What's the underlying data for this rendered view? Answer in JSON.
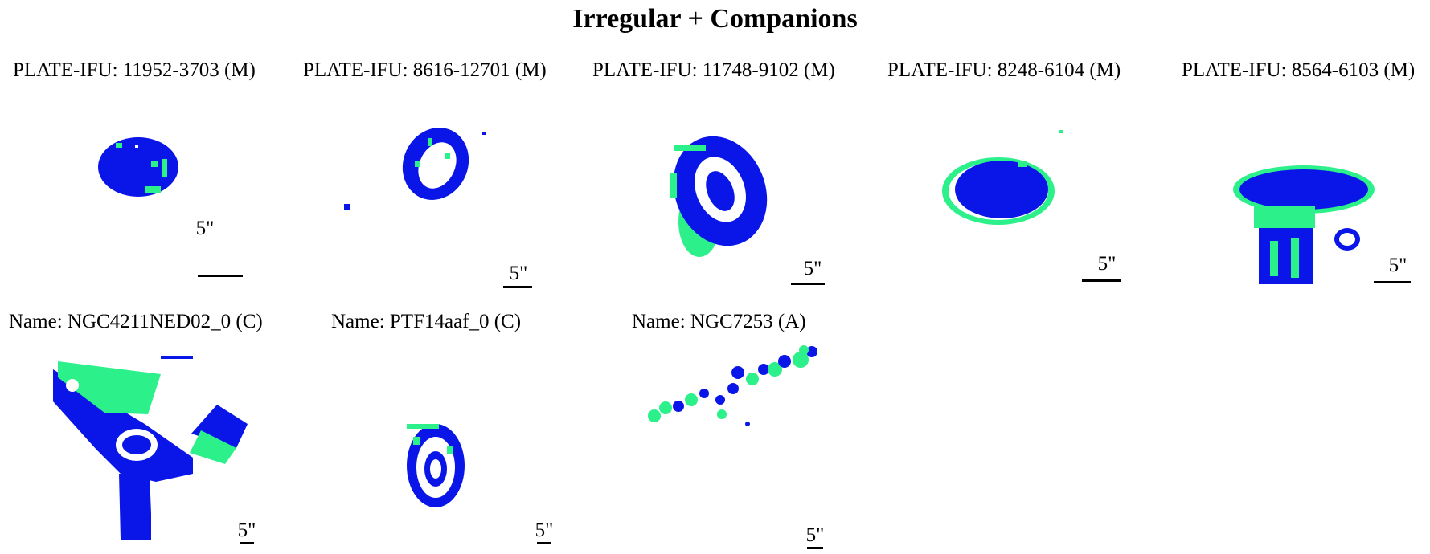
{
  "figure": {
    "title": "Irregular + Companions"
  },
  "colors": {
    "blue": "#0a16e8",
    "green": "#2cf08a",
    "background": "#ffffff"
  },
  "panels": [
    {
      "label": "PLATE-IFU: 11952-3703 (M)",
      "scale": "5\""
    },
    {
      "label": "PLATE-IFU: 8616-12701 (M)",
      "scale": "5\""
    },
    {
      "label": "PLATE-IFU: 11748-9102 (M)",
      "scale": "5\""
    },
    {
      "label": "PLATE-IFU: 8248-6104 (M)",
      "scale": "5\""
    },
    {
      "label": "PLATE-IFU: 8564-6103 (M)",
      "scale": "5\""
    },
    {
      "label": "Name: NGC4211NED02_0 (C)",
      "scale": "5\""
    },
    {
      "label": "Name: PTF14aaf_0 (C)",
      "scale": "5\""
    },
    {
      "label": "Name: NGC7253 (A)",
      "scale": "5\""
    }
  ]
}
